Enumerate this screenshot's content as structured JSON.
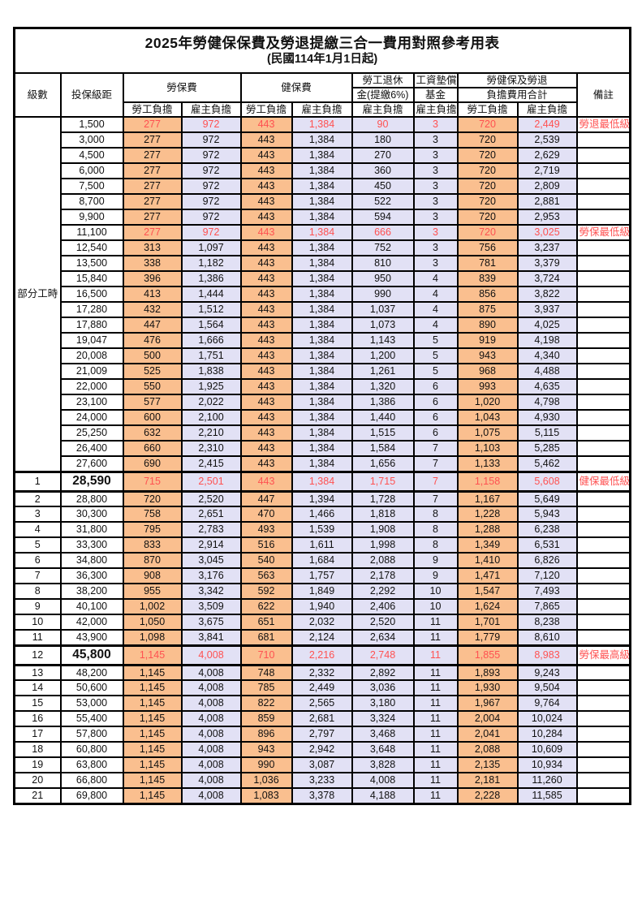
{
  "title": "2025年勞健保保費及勞退提繳三合一費用對照參考用表",
  "subtitle": "(民國114年1月1日起)",
  "header": {
    "level": "級數",
    "bracket": "投保級距",
    "labor_insurance": "勞保費",
    "health_insurance": "健保費",
    "pension_line1": "勞工退休",
    "pension_line2": "金(提繳6%)",
    "wage_fund_line1": "工資墊償",
    "wage_fund_line2": "基金",
    "total_line1": "勞健保及勞退",
    "total_line2": "負擔費用合計",
    "remark": "備註",
    "employee_share": "勞工負擔",
    "employer_share": "雇主負擔"
  },
  "colors": {
    "employee_bg": "#FABF8F",
    "employer_bg": "#E2E1F5",
    "highlight_text": "#FF5151",
    "border": "#000000"
  },
  "group_label": "部分工時",
  "rows": [
    {
      "level": "",
      "bracket": "1,500",
      "labor_emp": "277",
      "labor_er": "972",
      "health_emp": "443",
      "health_er": "1,384",
      "pension": "90",
      "wage_fund": "3",
      "total_emp": "720",
      "total_er": "2,449",
      "remark": "勞退最低級距",
      "red": true,
      "hl": false
    },
    {
      "level": "",
      "bracket": "3,000",
      "labor_emp": "277",
      "labor_er": "972",
      "health_emp": "443",
      "health_er": "1,384",
      "pension": "180",
      "wage_fund": "3",
      "total_emp": "720",
      "total_er": "2,539",
      "remark": "",
      "red": false,
      "hl": false
    },
    {
      "level": "",
      "bracket": "4,500",
      "labor_emp": "277",
      "labor_er": "972",
      "health_emp": "443",
      "health_er": "1,384",
      "pension": "270",
      "wage_fund": "3",
      "total_emp": "720",
      "total_er": "2,629",
      "remark": "",
      "red": false,
      "hl": false
    },
    {
      "level": "",
      "bracket": "6,000",
      "labor_emp": "277",
      "labor_er": "972",
      "health_emp": "443",
      "health_er": "1,384",
      "pension": "360",
      "wage_fund": "3",
      "total_emp": "720",
      "total_er": "2,719",
      "remark": "",
      "red": false,
      "hl": false
    },
    {
      "level": "",
      "bracket": "7,500",
      "labor_emp": "277",
      "labor_er": "972",
      "health_emp": "443",
      "health_er": "1,384",
      "pension": "450",
      "wage_fund": "3",
      "total_emp": "720",
      "total_er": "2,809",
      "remark": "",
      "red": false,
      "hl": false
    },
    {
      "level": "",
      "bracket": "8,700",
      "labor_emp": "277",
      "labor_er": "972",
      "health_emp": "443",
      "health_er": "1,384",
      "pension": "522",
      "wage_fund": "3",
      "total_emp": "720",
      "total_er": "2,881",
      "remark": "",
      "red": false,
      "hl": false
    },
    {
      "level": "",
      "bracket": "9,900",
      "labor_emp": "277",
      "labor_er": "972",
      "health_emp": "443",
      "health_er": "1,384",
      "pension": "594",
      "wage_fund": "3",
      "total_emp": "720",
      "total_er": "2,953",
      "remark": "",
      "red": false,
      "hl": false
    },
    {
      "level": "",
      "bracket": "11,100",
      "labor_emp": "277",
      "labor_er": "972",
      "health_emp": "443",
      "health_er": "1,384",
      "pension": "666",
      "wage_fund": "3",
      "total_emp": "720",
      "total_er": "3,025",
      "remark": "勞保最低級距",
      "red": true,
      "hl": false
    },
    {
      "level": "",
      "bracket": "12,540",
      "labor_emp": "313",
      "labor_er": "1,097",
      "health_emp": "443",
      "health_er": "1,384",
      "pension": "752",
      "wage_fund": "3",
      "total_emp": "756",
      "total_er": "3,237",
      "remark": "",
      "red": false,
      "hl": false
    },
    {
      "level": "",
      "bracket": "13,500",
      "labor_emp": "338",
      "labor_er": "1,182",
      "health_emp": "443",
      "health_er": "1,384",
      "pension": "810",
      "wage_fund": "3",
      "total_emp": "781",
      "total_er": "3,379",
      "remark": "",
      "red": false,
      "hl": false
    },
    {
      "level": "",
      "bracket": "15,840",
      "labor_emp": "396",
      "labor_er": "1,386",
      "health_emp": "443",
      "health_er": "1,384",
      "pension": "950",
      "wage_fund": "4",
      "total_emp": "839",
      "total_er": "3,724",
      "remark": "",
      "red": false,
      "hl": false
    },
    {
      "level": "",
      "bracket": "16,500",
      "labor_emp": "413",
      "labor_er": "1,444",
      "health_emp": "443",
      "health_er": "1,384",
      "pension": "990",
      "wage_fund": "4",
      "total_emp": "856",
      "total_er": "3,822",
      "remark": "",
      "red": false,
      "hl": false
    },
    {
      "level": "",
      "bracket": "17,280",
      "labor_emp": "432",
      "labor_er": "1,512",
      "health_emp": "443",
      "health_er": "1,384",
      "pension": "1,037",
      "wage_fund": "4",
      "total_emp": "875",
      "total_er": "3,937",
      "remark": "",
      "red": false,
      "hl": false
    },
    {
      "level": "",
      "bracket": "17,880",
      "labor_emp": "447",
      "labor_er": "1,564",
      "health_emp": "443",
      "health_er": "1,384",
      "pension": "1,073",
      "wage_fund": "4",
      "total_emp": "890",
      "total_er": "4,025",
      "remark": "",
      "red": false,
      "hl": false
    },
    {
      "level": "",
      "bracket": "19,047",
      "labor_emp": "476",
      "labor_er": "1,666",
      "health_emp": "443",
      "health_er": "1,384",
      "pension": "1,143",
      "wage_fund": "5",
      "total_emp": "919",
      "total_er": "4,198",
      "remark": "",
      "red": false,
      "hl": false
    },
    {
      "level": "",
      "bracket": "20,008",
      "labor_emp": "500",
      "labor_er": "1,751",
      "health_emp": "443",
      "health_er": "1,384",
      "pension": "1,200",
      "wage_fund": "5",
      "total_emp": "943",
      "total_er": "4,340",
      "remark": "",
      "red": false,
      "hl": false
    },
    {
      "level": "",
      "bracket": "21,009",
      "labor_emp": "525",
      "labor_er": "1,838",
      "health_emp": "443",
      "health_er": "1,384",
      "pension": "1,261",
      "wage_fund": "5",
      "total_emp": "968",
      "total_er": "4,488",
      "remark": "",
      "red": false,
      "hl": false
    },
    {
      "level": "",
      "bracket": "22,000",
      "labor_emp": "550",
      "labor_er": "1,925",
      "health_emp": "443",
      "health_er": "1,384",
      "pension": "1,320",
      "wage_fund": "6",
      "total_emp": "993",
      "total_er": "4,635",
      "remark": "",
      "red": false,
      "hl": false
    },
    {
      "level": "",
      "bracket": "23,100",
      "labor_emp": "577",
      "labor_er": "2,022",
      "health_emp": "443",
      "health_er": "1,384",
      "pension": "1,386",
      "wage_fund": "6",
      "total_emp": "1,020",
      "total_er": "4,798",
      "remark": "",
      "red": false,
      "hl": false
    },
    {
      "level": "",
      "bracket": "24,000",
      "labor_emp": "600",
      "labor_er": "2,100",
      "health_emp": "443",
      "health_er": "1,384",
      "pension": "1,440",
      "wage_fund": "6",
      "total_emp": "1,043",
      "total_er": "4,930",
      "remark": "",
      "red": false,
      "hl": false
    },
    {
      "level": "",
      "bracket": "25,250",
      "labor_emp": "632",
      "labor_er": "2,210",
      "health_emp": "443",
      "health_er": "1,384",
      "pension": "1,515",
      "wage_fund": "6",
      "total_emp": "1,075",
      "total_er": "5,115",
      "remark": "",
      "red": false,
      "hl": false
    },
    {
      "level": "",
      "bracket": "26,400",
      "labor_emp": "660",
      "labor_er": "2,310",
      "health_emp": "443",
      "health_er": "1,384",
      "pension": "1,584",
      "wage_fund": "7",
      "total_emp": "1,103",
      "total_er": "5,285",
      "remark": "",
      "red": false,
      "hl": false
    },
    {
      "level": "",
      "bracket": "27,600",
      "labor_emp": "690",
      "labor_er": "2,415",
      "health_emp": "443",
      "health_er": "1,384",
      "pension": "1,656",
      "wage_fund": "7",
      "total_emp": "1,133",
      "total_er": "5,462",
      "remark": "",
      "red": false,
      "hl": false
    },
    {
      "level": "1",
      "bracket": "28,590",
      "labor_emp": "715",
      "labor_er": "2,501",
      "health_emp": "443",
      "health_er": "1,384",
      "pension": "1,715",
      "wage_fund": "7",
      "total_emp": "1,158",
      "total_er": "5,608",
      "remark": "健保最低級距",
      "red": true,
      "hl": true
    },
    {
      "level": "2",
      "bracket": "28,800",
      "labor_emp": "720",
      "labor_er": "2,520",
      "health_emp": "447",
      "health_er": "1,394",
      "pension": "1,728",
      "wage_fund": "7",
      "total_emp": "1,167",
      "total_er": "5,649",
      "remark": "",
      "red": false,
      "hl": false
    },
    {
      "level": "3",
      "bracket": "30,300",
      "labor_emp": "758",
      "labor_er": "2,651",
      "health_emp": "470",
      "health_er": "1,466",
      "pension": "1,818",
      "wage_fund": "8",
      "total_emp": "1,228",
      "total_er": "5,943",
      "remark": "",
      "red": false,
      "hl": false
    },
    {
      "level": "4",
      "bracket": "31,800",
      "labor_emp": "795",
      "labor_er": "2,783",
      "health_emp": "493",
      "health_er": "1,539",
      "pension": "1,908",
      "wage_fund": "8",
      "total_emp": "1,288",
      "total_er": "6,238",
      "remark": "",
      "red": false,
      "hl": false
    },
    {
      "level": "5",
      "bracket": "33,300",
      "labor_emp": "833",
      "labor_er": "2,914",
      "health_emp": "516",
      "health_er": "1,611",
      "pension": "1,998",
      "wage_fund": "8",
      "total_emp": "1,349",
      "total_er": "6,531",
      "remark": "",
      "red": false,
      "hl": false
    },
    {
      "level": "6",
      "bracket": "34,800",
      "labor_emp": "870",
      "labor_er": "3,045",
      "health_emp": "540",
      "health_er": "1,684",
      "pension": "2,088",
      "wage_fund": "9",
      "total_emp": "1,410",
      "total_er": "6,826",
      "remark": "",
      "red": false,
      "hl": false
    },
    {
      "level": "7",
      "bracket": "36,300",
      "labor_emp": "908",
      "labor_er": "3,176",
      "health_emp": "563",
      "health_er": "1,757",
      "pension": "2,178",
      "wage_fund": "9",
      "total_emp": "1,471",
      "total_er": "7,120",
      "remark": "",
      "red": false,
      "hl": false
    },
    {
      "level": "8",
      "bracket": "38,200",
      "labor_emp": "955",
      "labor_er": "3,342",
      "health_emp": "592",
      "health_er": "1,849",
      "pension": "2,292",
      "wage_fund": "10",
      "total_emp": "1,547",
      "total_er": "7,493",
      "remark": "",
      "red": false,
      "hl": false
    },
    {
      "level": "9",
      "bracket": "40,100",
      "labor_emp": "1,002",
      "labor_er": "3,509",
      "health_emp": "622",
      "health_er": "1,940",
      "pension": "2,406",
      "wage_fund": "10",
      "total_emp": "1,624",
      "total_er": "7,865",
      "remark": "",
      "red": false,
      "hl": false
    },
    {
      "level": "10",
      "bracket": "42,000",
      "labor_emp": "1,050",
      "labor_er": "3,675",
      "health_emp": "651",
      "health_er": "2,032",
      "pension": "2,520",
      "wage_fund": "11",
      "total_emp": "1,701",
      "total_er": "8,238",
      "remark": "",
      "red": false,
      "hl": false
    },
    {
      "level": "11",
      "bracket": "43,900",
      "labor_emp": "1,098",
      "labor_er": "3,841",
      "health_emp": "681",
      "health_er": "2,124",
      "pension": "2,634",
      "wage_fund": "11",
      "total_emp": "1,779",
      "total_er": "8,610",
      "remark": "",
      "red": false,
      "hl": false
    },
    {
      "level": "12",
      "bracket": "45,800",
      "labor_emp": "1,145",
      "labor_er": "4,008",
      "health_emp": "710",
      "health_er": "2,216",
      "pension": "2,748",
      "wage_fund": "11",
      "total_emp": "1,855",
      "total_er": "8,983",
      "remark": "勞保最高級距",
      "red": true,
      "hl": true
    },
    {
      "level": "13",
      "bracket": "48,200",
      "labor_emp": "1,145",
      "labor_er": "4,008",
      "health_emp": "748",
      "health_er": "2,332",
      "pension": "2,892",
      "wage_fund": "11",
      "total_emp": "1,893",
      "total_er": "9,243",
      "remark": "",
      "red": false,
      "hl": false
    },
    {
      "level": "14",
      "bracket": "50,600",
      "labor_emp": "1,145",
      "labor_er": "4,008",
      "health_emp": "785",
      "health_er": "2,449",
      "pension": "3,036",
      "wage_fund": "11",
      "total_emp": "1,930",
      "total_er": "9,504",
      "remark": "",
      "red": false,
      "hl": false
    },
    {
      "level": "15",
      "bracket": "53,000",
      "labor_emp": "1,145",
      "labor_er": "4,008",
      "health_emp": "822",
      "health_er": "2,565",
      "pension": "3,180",
      "wage_fund": "11",
      "total_emp": "1,967",
      "total_er": "9,764",
      "remark": "",
      "red": false,
      "hl": false
    },
    {
      "level": "16",
      "bracket": "55,400",
      "labor_emp": "1,145",
      "labor_er": "4,008",
      "health_emp": "859",
      "health_er": "2,681",
      "pension": "3,324",
      "wage_fund": "11",
      "total_emp": "2,004",
      "total_er": "10,024",
      "remark": "",
      "red": false,
      "hl": false
    },
    {
      "level": "17",
      "bracket": "57,800",
      "labor_emp": "1,145",
      "labor_er": "4,008",
      "health_emp": "896",
      "health_er": "2,797",
      "pension": "3,468",
      "wage_fund": "11",
      "total_emp": "2,041",
      "total_er": "10,284",
      "remark": "",
      "red": false,
      "hl": false
    },
    {
      "level": "18",
      "bracket": "60,800",
      "labor_emp": "1,145",
      "labor_er": "4,008",
      "health_emp": "943",
      "health_er": "2,942",
      "pension": "3,648",
      "wage_fund": "11",
      "total_emp": "2,088",
      "total_er": "10,609",
      "remark": "",
      "red": false,
      "hl": false
    },
    {
      "level": "19",
      "bracket": "63,800",
      "labor_emp": "1,145",
      "labor_er": "4,008",
      "health_emp": "990",
      "health_er": "3,087",
      "pension": "3,828",
      "wage_fund": "11",
      "total_emp": "2,135",
      "total_er": "10,934",
      "remark": "",
      "red": false,
      "hl": false
    },
    {
      "level": "20",
      "bracket": "66,800",
      "labor_emp": "1,145",
      "labor_er": "4,008",
      "health_emp": "1,036",
      "health_er": "3,233",
      "pension": "4,008",
      "wage_fund": "11",
      "total_emp": "2,181",
      "total_er": "11,260",
      "remark": "",
      "red": false,
      "hl": false
    },
    {
      "level": "21",
      "bracket": "69,800",
      "labor_emp": "1,145",
      "labor_er": "4,008",
      "health_emp": "1,083",
      "health_er": "3,378",
      "pension": "4,188",
      "wage_fund": "11",
      "total_emp": "2,228",
      "total_er": "11,585",
      "remark": "",
      "red": false,
      "hl": false
    }
  ]
}
